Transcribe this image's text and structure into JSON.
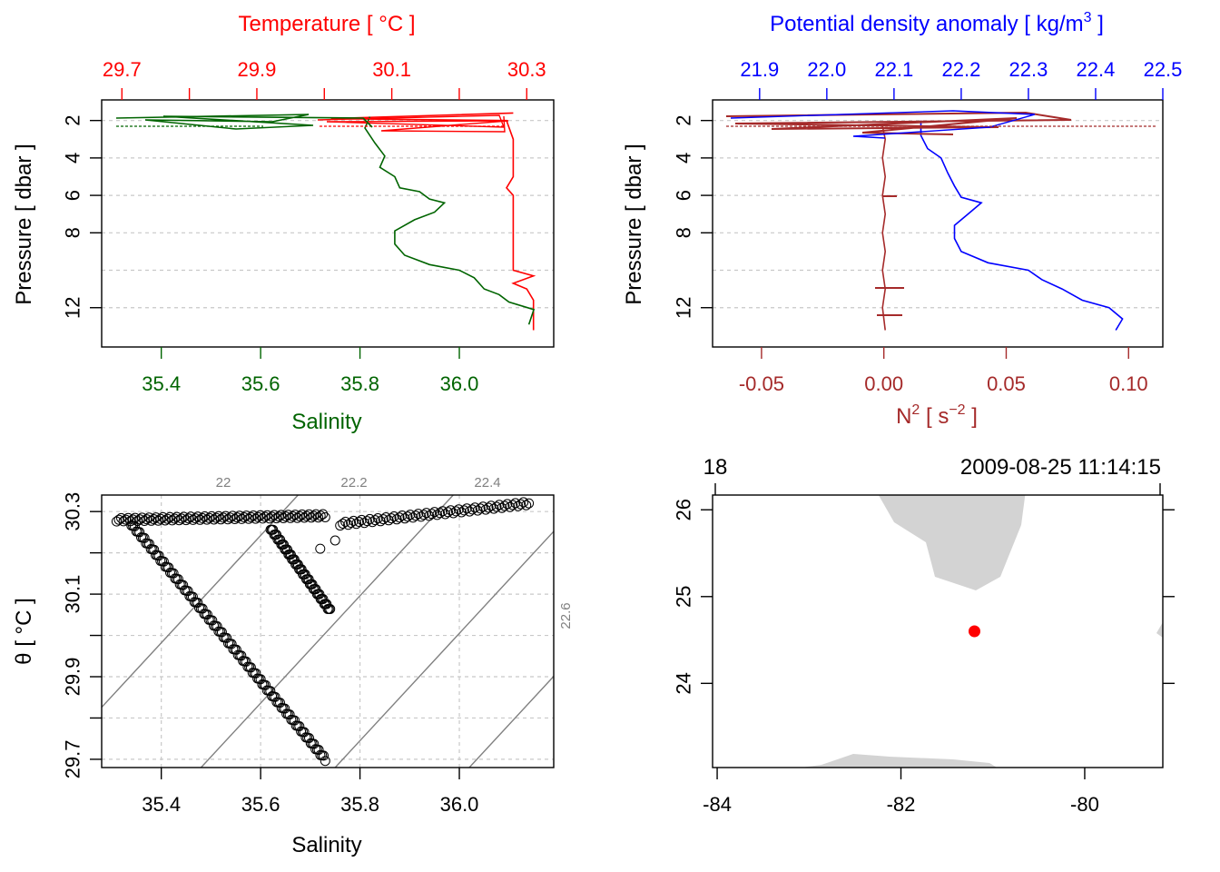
{
  "colors": {
    "temperature": "#ff0000",
    "salinity": "#006400",
    "density": "#0000ff",
    "n2": "#a52a2a",
    "grid": "#c8c8c8",
    "isopycnal": "#808080",
    "land": "#d3d3d3",
    "station": "#ff0000"
  },
  "chart_data": [
    {
      "type": "line",
      "id": "profile_TS",
      "top_axis": {
        "label": "Temperature [ °C ]",
        "range": [
          29.67,
          30.34
        ],
        "ticks": [
          "29.7",
          "29.9",
          "30.1",
          "30.3"
        ],
        "minor_ticks": [
          29.8,
          30.0,
          30.2
        ]
      },
      "bottom_axis": {
        "label": "Salinity",
        "range": [
          35.28,
          36.19
        ],
        "ticks": [
          "35.4",
          "35.6",
          "35.8",
          "36.0"
        ]
      },
      "y_axis": {
        "label": "Pressure [ dbar ]",
        "range": [
          0.9,
          14.1
        ],
        "inverted": true,
        "ticks": [
          "2",
          "4",
          "6",
          "8",
          "12"
        ],
        "gridlines": [
          2,
          4,
          6,
          8,
          10,
          12
        ]
      },
      "series": [
        {
          "name": "Temperature",
          "color": "#ff0000",
          "axis": "top",
          "points": [
            [
              30.28,
              1.6
            ],
            [
              30.01,
              1.9
            ],
            [
              30.27,
              2.0
            ],
            [
              30.28,
              3
            ],
            [
              30.28,
              4
            ],
            [
              30.28,
              5
            ],
            [
              30.27,
              5.6
            ],
            [
              30.28,
              6
            ],
            [
              30.28,
              7
            ],
            [
              30.28,
              8
            ],
            [
              30.28,
              9
            ],
            [
              30.28,
              10.0
            ],
            [
              30.31,
              10.3
            ],
            [
              30.28,
              10.7
            ],
            [
              30.3,
              11.0
            ],
            [
              30.31,
              11.6
            ],
            [
              30.31,
              12.3
            ],
            [
              30.31,
              13.2
            ]
          ]
        },
        {
          "name": "Salinity",
          "color": "#006400",
          "axis": "bottom",
          "points": [
            [
              35.82,
              1.8
            ],
            [
              35.81,
              2.4
            ],
            [
              35.82,
              2.8
            ],
            [
              35.83,
              3.2
            ],
            [
              35.85,
              3.9
            ],
            [
              35.84,
              4.5
            ],
            [
              35.87,
              5.0
            ],
            [
              35.88,
              5.6
            ],
            [
              35.92,
              5.8
            ],
            [
              35.94,
              6.2
            ],
            [
              35.97,
              6.4
            ],
            [
              35.95,
              6.9
            ],
            [
              35.91,
              7.3
            ],
            [
              35.87,
              7.9
            ],
            [
              35.87,
              8.6
            ],
            [
              35.89,
              9.2
            ],
            [
              35.94,
              9.7
            ],
            [
              36.0,
              10.0
            ],
            [
              36.03,
              10.4
            ],
            [
              36.05,
              11.0
            ],
            [
              36.08,
              11.3
            ],
            [
              36.1,
              11.7
            ],
            [
              36.15,
              12.1
            ],
            [
              36.14,
              12.9
            ]
          ]
        }
      ]
    },
    {
      "type": "line",
      "id": "profile_density_N2",
      "top_axis": {
        "label": "Potential density anomaly [ kg/m",
        "label_sup": "3",
        "label_end": " ]",
        "range": [
          21.83,
          22.5
        ],
        "ticks": [
          "21.9",
          "22.0",
          "22.1",
          "22.2",
          "22.3",
          "22.4",
          "22.5"
        ]
      },
      "bottom_axis": {
        "label": "N",
        "label_sup": "2",
        "label_mid": " [ s",
        "label_sup2": "−2",
        "label_end": " ]",
        "range": [
          -0.07,
          0.114
        ],
        "ticks": [
          "-0.05",
          "0.00",
          "0.05",
          "0.10"
        ]
      },
      "y_axis": {
        "label": "Pressure [ dbar ]",
        "range": [
          0.9,
          14.1
        ],
        "inverted": true,
        "ticks": [
          "2",
          "4",
          "6",
          "8",
          "12"
        ],
        "gridlines": [
          2,
          4,
          6,
          8,
          10,
          12
        ]
      },
      "series": [
        {
          "name": "Potential density anomaly",
          "color": "#0000ff",
          "axis": "top",
          "points": [
            [
              22.14,
              2.0
            ],
            [
              22.14,
              2.8
            ],
            [
              22.15,
              3.5
            ],
            [
              22.17,
              4.0
            ],
            [
              22.18,
              4.8
            ],
            [
              22.19,
              5.5
            ],
            [
              22.2,
              6.1
            ],
            [
              22.23,
              6.4
            ],
            [
              22.21,
              7.0
            ],
            [
              22.19,
              7.6
            ],
            [
              22.19,
              8.3
            ],
            [
              22.2,
              9.0
            ],
            [
              22.24,
              9.6
            ],
            [
              22.3,
              10.0
            ],
            [
              22.32,
              10.5
            ],
            [
              22.35,
              11.0
            ],
            [
              22.38,
              11.6
            ],
            [
              22.42,
              12.0
            ],
            [
              22.44,
              12.6
            ],
            [
              22.43,
              13.2
            ]
          ]
        },
        {
          "name": "N2",
          "color": "#a52a2a",
          "axis": "bottom",
          "points": [
            [
              0.0,
              2.3
            ],
            [
              0.0,
              3
            ],
            [
              0.0,
              4
            ],
            [
              0.0,
              5
            ],
            [
              0.0,
              6
            ],
            [
              0.0,
              7
            ],
            [
              0.0,
              8
            ],
            [
              0.0,
              9
            ],
            [
              0.0,
              10
            ],
            [
              0.0,
              11
            ],
            [
              0.0,
              12
            ],
            [
              0.0,
              13.2
            ]
          ]
        }
      ]
    },
    {
      "type": "scatter",
      "id": "TS_diagram",
      "x_axis": {
        "label": "Salinity",
        "range": [
          35.28,
          36.19
        ],
        "ticks": [
          "35.4",
          "35.6",
          "35.8",
          "36.0"
        ]
      },
      "y_axis": {
        "label": "θ [ °C ]",
        "range": [
          29.68,
          30.34
        ],
        "ticks": [
          "29.7",
          "29.9",
          "30.1",
          "30.3"
        ]
      },
      "isopycnals": [
        "22",
        "22.2",
        "22.4",
        "22.6"
      ],
      "series": [
        {
          "name": "profile",
          "color": "#000000",
          "points": [
            [
              35.31,
              30.28
            ],
            [
              35.4,
              30.29
            ],
            [
              35.5,
              30.29
            ],
            [
              35.6,
              30.28
            ],
            [
              35.7,
              30.29
            ],
            [
              35.73,
              30.29
            ],
            [
              35.34,
              30.26
            ],
            [
              35.42,
              30.15
            ],
            [
              35.5,
              30.05
            ],
            [
              35.58,
              29.95
            ],
            [
              35.65,
              29.83
            ],
            [
              35.73,
              29.7
            ],
            [
              35.62,
              30.25
            ],
            [
              35.66,
              30.17
            ],
            [
              35.7,
              30.08
            ],
            [
              35.75,
              30.24
            ],
            [
              35.8,
              30.28
            ],
            [
              35.9,
              30.28
            ],
            [
              36.0,
              30.3
            ],
            [
              36.14,
              30.32
            ]
          ]
        }
      ]
    },
    {
      "type": "map",
      "id": "station_map",
      "x_axis": {
        "range": [
          -84.05,
          -79.15
        ],
        "ticks": [
          "-84",
          "-82",
          "-80"
        ]
      },
      "y_axis": {
        "range": [
          23.03,
          26.17
        ],
        "ticks": [
          "24",
          "25",
          "26"
        ]
      },
      "station_label": "18",
      "timestamp": "2009-08-25 11:14:15",
      "station": [
        -81.2,
        24.6
      ]
    }
  ]
}
